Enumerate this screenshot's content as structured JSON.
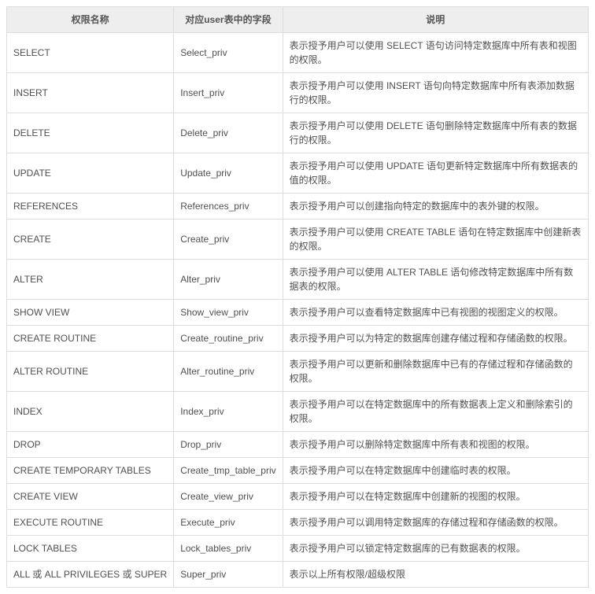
{
  "table": {
    "headers": [
      "权限名称",
      "对应user表中的字段",
      "说明"
    ],
    "rows": [
      [
        "SELECT",
        "Select_priv",
        "表示授予用户可以使用 SELECT 语句访问特定数据库中所有表和视图的权限。"
      ],
      [
        "INSERT",
        "Insert_priv",
        "表示授予用户可以使用 INSERT 语句向特定数据库中所有表添加数据行的权限。"
      ],
      [
        "DELETE",
        "Delete_priv",
        "表示授予用户可以使用 DELETE 语句删除特定数据库中所有表的数据行的权限。"
      ],
      [
        "UPDATE",
        "Update_priv",
        "表示授予用户可以使用 UPDATE 语句更新特定数据库中所有数据表的值的权限。"
      ],
      [
        "REFERENCES",
        "References_priv",
        "表示授予用户可以创建指向特定的数据库中的表外键的权限。"
      ],
      [
        "CREATE",
        "Create_priv",
        "表示授予用户可以使用 CREATE TABLE 语句在特定数据库中创建新表的权限。"
      ],
      [
        "ALTER",
        "Alter_priv",
        "表示授予用户可以使用 ALTER TABLE 语句修改特定数据库中所有数据表的权限。"
      ],
      [
        "SHOW VIEW",
        "Show_view_priv",
        "表示授予用户可以查看特定数据库中已有视图的视图定义的权限。"
      ],
      [
        "CREATE ROUTINE",
        "Create_routine_priv",
        "表示授予用户可以为特定的数据库创建存储过程和存储函数的权限。"
      ],
      [
        "ALTER ROUTINE",
        "Alter_routine_priv",
        "表示授予用户可以更新和删除数据库中已有的存储过程和存储函数的权限。"
      ],
      [
        "INDEX",
        "Index_priv",
        "表示授予用户可以在特定数据库中的所有数据表上定义和删除索引的权限。"
      ],
      [
        "DROP",
        "Drop_priv",
        "表示授予用户可以删除特定数据库中所有表和视图的权限。"
      ],
      [
        "CREATE TEMPORARY TABLES",
        "Create_tmp_table_priv",
        "表示授予用户可以在特定数据库中创建临时表的权限。"
      ],
      [
        "CREATE VIEW",
        "Create_view_priv",
        "表示授予用户可以在特定数据库中创建新的视图的权限。"
      ],
      [
        "EXECUTE ROUTINE",
        "Execute_priv",
        "表示授予用户可以调用特定数据库的存储过程和存储函数的权限。"
      ],
      [
        "LOCK TABLES",
        "Lock_tables_priv",
        "表示授予用户可以锁定特定数据库的已有数据表的权限。"
      ],
      [
        "ALL 或 ALL PRIVILEGES 或 SUPER",
        "Super_priv",
        "表示以上所有权限/超级权限"
      ]
    ]
  }
}
